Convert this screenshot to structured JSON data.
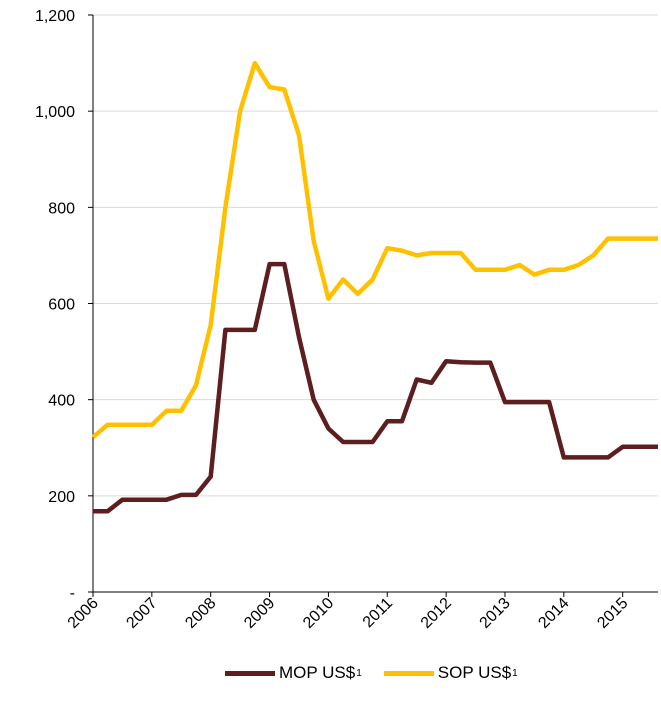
{
  "chart_data": {
    "type": "line",
    "title": "",
    "xlabel": "",
    "ylabel": "",
    "ylim": [
      0,
      1200
    ],
    "xlim": [
      2006,
      2015.6
    ],
    "yticks": [
      {
        "value": 0,
        "label": "-"
      },
      {
        "value": 200,
        "label": "200"
      },
      {
        "value": 400,
        "label": "400"
      },
      {
        "value": 600,
        "label": "600"
      },
      {
        "value": 800,
        "label": "800"
      },
      {
        "value": 1000,
        "label": "1,000"
      },
      {
        "value": 1200,
        "label": "1,200"
      }
    ],
    "xticks": [
      "2006",
      "2007",
      "2008",
      "2009",
      "2010",
      "2011",
      "2012",
      "2013",
      "2014",
      "2015"
    ],
    "grid": true,
    "legend_position": "bottom",
    "series": [
      {
        "name": "MOP US$",
        "superscript": "1",
        "color": "#5c1e1e",
        "points": [
          [
            2006.0,
            168
          ],
          [
            2006.25,
            168
          ],
          [
            2006.5,
            192
          ],
          [
            2006.75,
            192
          ],
          [
            2007.0,
            192
          ],
          [
            2007.25,
            192
          ],
          [
            2007.5,
            202
          ],
          [
            2007.75,
            202
          ],
          [
            2008.0,
            240
          ],
          [
            2008.25,
            545
          ],
          [
            2008.5,
            545
          ],
          [
            2008.75,
            545
          ],
          [
            2009.0,
            682
          ],
          [
            2009.25,
            682
          ],
          [
            2009.5,
            530
          ],
          [
            2009.75,
            400
          ],
          [
            2010.0,
            340
          ],
          [
            2010.25,
            312
          ],
          [
            2010.5,
            312
          ],
          [
            2010.75,
            312
          ],
          [
            2011.0,
            355
          ],
          [
            2011.25,
            355
          ],
          [
            2011.5,
            442
          ],
          [
            2011.75,
            435
          ],
          [
            2012.0,
            480
          ],
          [
            2012.25,
            478
          ],
          [
            2012.5,
            477
          ],
          [
            2012.75,
            477
          ],
          [
            2013.0,
            395
          ],
          [
            2013.25,
            395
          ],
          [
            2013.5,
            395
          ],
          [
            2013.75,
            395
          ],
          [
            2014.0,
            280
          ],
          [
            2014.25,
            280
          ],
          [
            2014.5,
            280
          ],
          [
            2014.75,
            280
          ],
          [
            2015.0,
            302
          ],
          [
            2015.25,
            302
          ],
          [
            2015.6,
            302
          ]
        ]
      },
      {
        "name": "SOP US$",
        "superscript": "1",
        "color": "#ffc000",
        "points": [
          [
            2006.0,
            322
          ],
          [
            2006.25,
            348
          ],
          [
            2006.5,
            348
          ],
          [
            2006.75,
            348
          ],
          [
            2007.0,
            348
          ],
          [
            2007.25,
            377
          ],
          [
            2007.5,
            377
          ],
          [
            2007.75,
            430
          ],
          [
            2008.0,
            555
          ],
          [
            2008.25,
            800
          ],
          [
            2008.5,
            1000
          ],
          [
            2008.75,
            1100
          ],
          [
            2009.0,
            1050
          ],
          [
            2009.25,
            1045
          ],
          [
            2009.5,
            950
          ],
          [
            2009.75,
            730
          ],
          [
            2010.0,
            610
          ],
          [
            2010.25,
            650
          ],
          [
            2010.5,
            620
          ],
          [
            2010.75,
            650
          ],
          [
            2011.0,
            715
          ],
          [
            2011.25,
            710
          ],
          [
            2011.5,
            700
          ],
          [
            2011.75,
            705
          ],
          [
            2012.0,
            705
          ],
          [
            2012.25,
            705
          ],
          [
            2012.5,
            670
          ],
          [
            2012.75,
            670
          ],
          [
            2013.0,
            670
          ],
          [
            2013.25,
            680
          ],
          [
            2013.5,
            660
          ],
          [
            2013.75,
            670
          ],
          [
            2014.0,
            670
          ],
          [
            2014.25,
            680
          ],
          [
            2014.5,
            700
          ],
          [
            2014.75,
            735
          ],
          [
            2015.0,
            735
          ],
          [
            2015.25,
            735
          ],
          [
            2015.6,
            735
          ]
        ]
      }
    ]
  }
}
